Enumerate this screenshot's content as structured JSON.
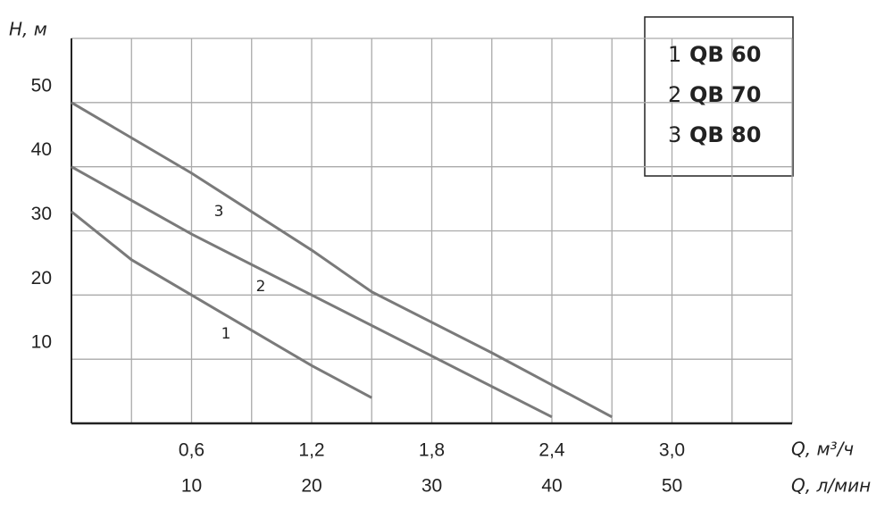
{
  "chart_data": {
    "type": "line",
    "y_label": "H, м",
    "x_label": "Q, м³/ч",
    "x2_label": "Q, л/мин",
    "xlim": [
      0,
      3.6
    ],
    "ylim": [
      0,
      60
    ],
    "xticks": [
      {
        "value": 0.6,
        "label": "0,6"
      },
      {
        "value": 1.2,
        "label": "1,2"
      },
      {
        "value": 1.8,
        "label": "1,8"
      },
      {
        "value": 2.4,
        "label": "2,4"
      },
      {
        "value": 3.0,
        "label": "3,0"
      }
    ],
    "x2lim": [
      0,
      60
    ],
    "x2ticks": [
      10,
      20,
      30,
      40,
      50
    ],
    "yticks": [
      10,
      20,
      30,
      40,
      50
    ],
    "grid": true,
    "legend": "top-right",
    "series": [
      {
        "name": "QB 60",
        "curve_label": "1",
        "color": "#7a7a7a",
        "x": [
          0,
          0.3,
          0.6,
          0.9,
          1.2,
          1.5
        ],
        "values": [
          33,
          25.5,
          20,
          14.5,
          9,
          4
        ]
      },
      {
        "name": "QB 70",
        "curve_label": "2",
        "color": "#7a7a7a",
        "x": [
          0,
          0.6,
          1.2,
          1.8,
          2.4
        ],
        "values": [
          40,
          29.5,
          20,
          10.5,
          1
        ]
      },
      {
        "name": "QB 80",
        "curve_label": "3",
        "color": "#7a7a7a",
        "x": [
          0,
          0.6,
          1.2,
          1.5,
          2.1,
          2.4,
          2.7
        ],
        "values": [
          50,
          39,
          27,
          20.5,
          11,
          6,
          1
        ]
      }
    ]
  }
}
